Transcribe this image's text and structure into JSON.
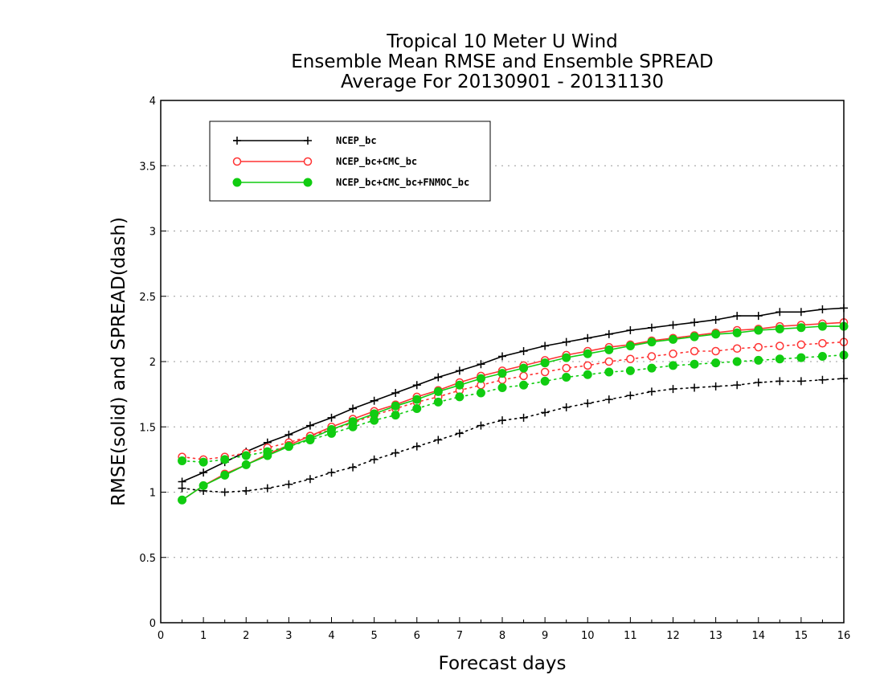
{
  "chart_data": {
    "type": "line",
    "title_lines": [
      "Tropical 10 Meter U Wind",
      "Ensemble Mean RMSE and Ensemble SPREAD",
      "Average For 20130901 - 20131130"
    ],
    "xlabel": "Forecast days",
    "ylabel": "RMSE(solid) and SPREAD(dash)",
    "xlim": [
      0,
      16
    ],
    "ylim": [
      0,
      4
    ],
    "x_ticks": [
      0,
      1,
      2,
      3,
      4,
      5,
      6,
      7,
      8,
      9,
      10,
      11,
      12,
      13,
      14,
      15,
      16
    ],
    "y_ticks": [
      0,
      0.5,
      1,
      1.5,
      2,
      2.5,
      3,
      3.5,
      4
    ],
    "y_tick_labels": [
      "0",
      "0.5",
      "1",
      "1.5",
      "2",
      "2.5",
      "3",
      "3.5",
      "4"
    ],
    "grid": "horizontal-dotted",
    "legend_position": "top-left",
    "x": [
      0.5,
      1,
      1.5,
      2,
      2.5,
      3,
      3.5,
      4,
      4.5,
      5,
      5.5,
      6,
      6.5,
      7,
      7.5,
      8,
      8.5,
      9,
      9.5,
      10,
      10.5,
      11,
      11.5,
      12,
      12.5,
      13,
      13.5,
      14,
      14.5,
      15,
      15.5,
      16
    ],
    "series": [
      {
        "name": "NCEP_bc",
        "color": "#000000",
        "marker": "plus",
        "rmse": [
          1.08,
          1.15,
          1.23,
          1.31,
          1.38,
          1.44,
          1.51,
          1.57,
          1.64,
          1.7,
          1.76,
          1.82,
          1.88,
          1.93,
          1.98,
          2.04,
          2.08,
          2.12,
          2.15,
          2.18,
          2.21,
          2.24,
          2.26,
          2.28,
          2.3,
          2.32,
          2.35,
          2.35,
          2.38,
          2.38,
          2.4,
          2.41
        ],
        "spread": [
          1.03,
          1.01,
          1.0,
          1.01,
          1.03,
          1.06,
          1.1,
          1.15,
          1.19,
          1.25,
          1.3,
          1.35,
          1.4,
          1.45,
          1.51,
          1.55,
          1.57,
          1.61,
          1.65,
          1.68,
          1.71,
          1.74,
          1.77,
          1.79,
          1.8,
          1.81,
          1.82,
          1.84,
          1.85,
          1.85,
          1.86,
          1.87
        ]
      },
      {
        "name": "NCEP_bc+CMC_bc",
        "color": "#ff3333",
        "marker": "open-circle",
        "rmse": [
          0.94,
          1.05,
          1.14,
          1.21,
          1.29,
          1.36,
          1.43,
          1.5,
          1.56,
          1.62,
          1.67,
          1.73,
          1.78,
          1.84,
          1.89,
          1.93,
          1.97,
          2.01,
          2.05,
          2.08,
          2.11,
          2.13,
          2.16,
          2.18,
          2.2,
          2.22,
          2.24,
          2.25,
          2.27,
          2.28,
          2.29,
          2.3
        ],
        "spread": [
          1.27,
          1.25,
          1.27,
          1.3,
          1.34,
          1.38,
          1.43,
          1.48,
          1.53,
          1.59,
          1.64,
          1.69,
          1.73,
          1.78,
          1.82,
          1.86,
          1.89,
          1.92,
          1.95,
          1.97,
          2.0,
          2.02,
          2.04,
          2.06,
          2.08,
          2.08,
          2.1,
          2.11,
          2.12,
          2.13,
          2.14,
          2.15
        ]
      },
      {
        "name": "NCEP_bc+CMC_bc+FNMOC_bc",
        "color": "#11cc11",
        "marker": "filled-circle",
        "rmse": [
          0.94,
          1.05,
          1.13,
          1.21,
          1.28,
          1.35,
          1.41,
          1.48,
          1.54,
          1.6,
          1.66,
          1.71,
          1.77,
          1.82,
          1.87,
          1.91,
          1.95,
          1.99,
          2.03,
          2.06,
          2.09,
          2.12,
          2.15,
          2.17,
          2.19,
          2.21,
          2.22,
          2.24,
          2.25,
          2.26,
          2.27,
          2.27
        ],
        "spread": [
          1.24,
          1.23,
          1.25,
          1.28,
          1.31,
          1.35,
          1.4,
          1.45,
          1.5,
          1.55,
          1.59,
          1.64,
          1.69,
          1.73,
          1.76,
          1.8,
          1.82,
          1.85,
          1.88,
          1.9,
          1.92,
          1.93,
          1.95,
          1.97,
          1.98,
          1.99,
          2.0,
          2.01,
          2.02,
          2.03,
          2.04,
          2.05
        ]
      }
    ]
  }
}
